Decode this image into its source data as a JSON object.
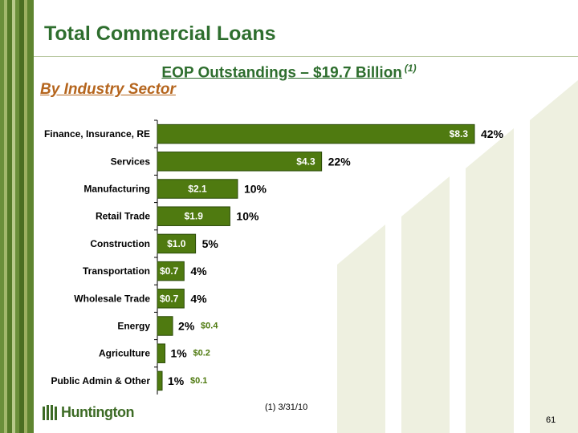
{
  "title": "Total Commercial Loans",
  "subtitle": "EOP Outstandings – $19.7 Billion",
  "subtitle_note": "(1)",
  "section_label": "By Industry Sector",
  "footnote": "(1)  3/31/10",
  "page_number": "61",
  "logo_text": "Huntington",
  "colors": {
    "bar": "#4f7a10",
    "bar_outline": "#2a4a08",
    "title": "#2e6e2e",
    "sector": "#b5651d",
    "watermark": "#eef0e0"
  },
  "chart_data": {
    "type": "bar",
    "orientation": "horizontal",
    "title": "",
    "xlabel": "",
    "ylabel": "",
    "categories": [
      "Finance, Insurance, RE",
      "Services",
      "Manufacturing",
      "Retail Trade",
      "Construction",
      "Transportation",
      "Wholesale Trade",
      "Energy",
      "Agriculture",
      "Public Admin & Other"
    ],
    "values": [
      8.3,
      4.3,
      2.1,
      1.9,
      1.0,
      0.7,
      0.7,
      0.4,
      0.2,
      0.1
    ],
    "value_labels": [
      "$8.3",
      "$4.3",
      "$2.1",
      "$1.9",
      "$1.0",
      "$0.7",
      "$0.7",
      "$0.4",
      "$0.2",
      "$0.1"
    ],
    "value_label_inside": [
      true,
      true,
      true,
      true,
      true,
      true,
      true,
      false,
      false,
      false
    ],
    "percent_labels": [
      "42%",
      "22%",
      "10%",
      "10%",
      "5%",
      "4%",
      "4%",
      "2%",
      "1%",
      "1%"
    ],
    "xlim": [
      0,
      8.3
    ],
    "grid": false,
    "legend": "none"
  }
}
